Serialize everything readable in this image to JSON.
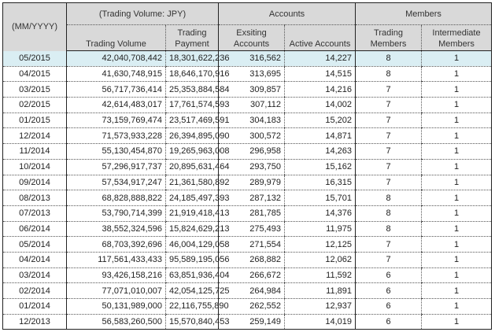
{
  "header": {
    "period": "(MM/YYYY)",
    "group_volume": "(Trading Volume: JPY)",
    "group_accounts": "Accounts",
    "group_members": "Members",
    "col_trading_volume": "Trading Volume",
    "col_trading_payment": "Trading Payment",
    "col_existing_accounts": "Exsiting Accounts",
    "col_active_accounts": "Active Accounts",
    "col_trading_members": "Trading Members",
    "col_intermediate_members": "Intermediate Members"
  },
  "highlight_color": "#daeef3",
  "rows": [
    [
      "05/2015",
      "42,040,708,442",
      "18,301,622,236",
      "316,562",
      "14,227",
      "8",
      "1"
    ],
    [
      "04/2015",
      "41,630,748,915",
      "18,646,170,916",
      "313,695",
      "14,515",
      "8",
      "1"
    ],
    [
      "03/2015",
      "56,717,736,414",
      "25,353,884,584",
      "309,857",
      "14,216",
      "7",
      "1"
    ],
    [
      "02/2015",
      "42,614,483,017",
      "17,761,574,593",
      "307,112",
      "14,002",
      "7",
      "1"
    ],
    [
      "01/2015",
      "73,159,769,474",
      "23,517,469,591",
      "304,183",
      "15,202",
      "7",
      "1"
    ],
    [
      "12/2014",
      "71,573,933,228",
      "26,394,895,090",
      "300,572",
      "14,871",
      "7",
      "1"
    ],
    [
      "11/2014",
      "55,130,454,870",
      "19,265,963,008",
      "296,958",
      "14,263",
      "7",
      "1"
    ],
    [
      "10/2014",
      "57,296,917,737",
      "20,895,631,464",
      "293,750",
      "15,162",
      "7",
      "1"
    ],
    [
      "09/2014",
      "57,534,917,247",
      "21,361,580,892",
      "289,979",
      "16,315",
      "7",
      "1"
    ],
    [
      "08/2013",
      "68,828,888,822",
      "24,185,497,393",
      "287,132",
      "15,701",
      "8",
      "1"
    ],
    [
      "07/2013",
      "53,790,714,399",
      "21,919,418,413",
      "281,785",
      "14,376",
      "8",
      "1"
    ],
    [
      "06/2014",
      "38,552,324,596",
      "15,824,629,213",
      "275,493",
      "11,975",
      "8",
      "1"
    ],
    [
      "05/2014",
      "68,703,392,696",
      "46,004,129,058",
      "271,554",
      "12,125",
      "7",
      "1"
    ],
    [
      "04/2014",
      "117,561,433,433",
      "95,589,195,056",
      "268,882",
      "12,062",
      "7",
      "1"
    ],
    [
      "03/2014",
      "93,426,158,216",
      "63,851,936,404",
      "266,672",
      "11,592",
      "6",
      "1"
    ],
    [
      "02/2014",
      "77,071,010,007",
      "42,054,125,725",
      "264,984",
      "11,891",
      "6",
      "1"
    ],
    [
      "01/2014",
      "50,131,989,000",
      "22,116,755,890",
      "262,552",
      "12,937",
      "6",
      "1"
    ],
    [
      "12/2013",
      "56,583,260,500",
      "15,570,840,453",
      "259,149",
      "14,019",
      "6",
      "1"
    ]
  ]
}
